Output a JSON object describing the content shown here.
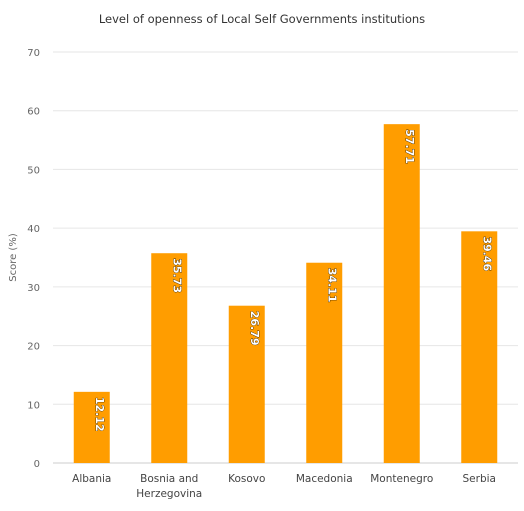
{
  "chart_data": {
    "type": "bar",
    "title": "Level of openness of Local Self Governments institutions",
    "xlabel": "",
    "ylabel": "Score (%)",
    "ylim": [
      0,
      70
    ],
    "yticks": [
      0,
      10,
      20,
      30,
      40,
      50,
      60,
      70
    ],
    "grid": true,
    "legend": "none",
    "categories": [
      "Albania",
      "Bosnia and Herzegovina",
      "Kosovo",
      "Macedonia",
      "Montenegro",
      "Serbia"
    ],
    "category_lines": [
      [
        "Albania"
      ],
      [
        "Bosnia and",
        "Herzegovina"
      ],
      [
        "Kosovo"
      ],
      [
        "Macedonia"
      ],
      [
        "Montenegro"
      ],
      [
        "Serbia"
      ]
    ],
    "values": [
      12.12,
      35.73,
      26.79,
      34.11,
      57.71,
      39.46
    ],
    "labels": [
      "12.12",
      "35.73",
      "26.79",
      "34.11",
      "57.71",
      "39.46"
    ],
    "colors": {
      "bar": "#ff9d00",
      "grid": "#e6e6e6",
      "tick_text": "#666666",
      "label_text": "#ffffff",
      "label_outline": "#000000"
    }
  }
}
